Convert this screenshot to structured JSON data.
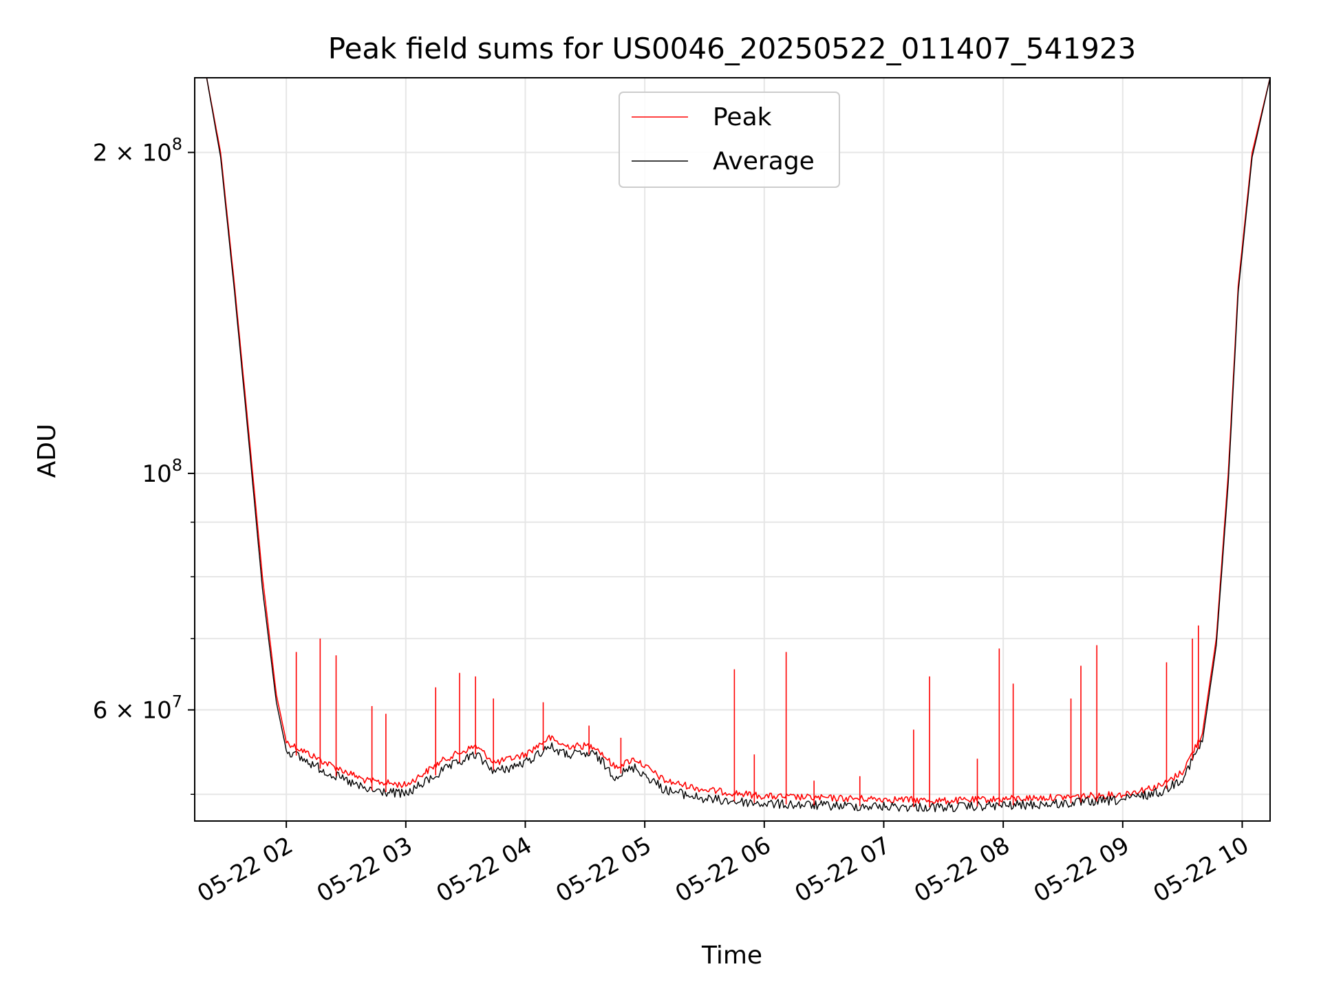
{
  "chart_data": {
    "type": "line",
    "title": "Peak field sums for US0046_20250522_011407_541923",
    "xlabel": "Time",
    "ylabel": "ADU",
    "yscale": "log",
    "grid": true,
    "legend_position": "top-center",
    "xlim": [
      "2025-05-22 01:14",
      "2025-05-22 10:14"
    ],
    "ylim": [
      47200000,
      235000000
    ],
    "x_ticks": [
      {
        "value": "2025-05-22 02:00",
        "label": "05-22 02"
      },
      {
        "value": "2025-05-22 03:00",
        "label": "05-22 03"
      },
      {
        "value": "2025-05-22 04:00",
        "label": "05-22 04"
      },
      {
        "value": "2025-05-22 05:00",
        "label": "05-22 05"
      },
      {
        "value": "2025-05-22 06:00",
        "label": "05-22 06"
      },
      {
        "value": "2025-05-22 07:00",
        "label": "05-22 07"
      },
      {
        "value": "2025-05-22 08:00",
        "label": "05-22 08"
      },
      {
        "value": "2025-05-22 09:00",
        "label": "05-22 09"
      },
      {
        "value": "2025-05-22 10:00",
        "label": "05-22 10"
      }
    ],
    "y_major_ticks": [
      {
        "value": 200000000,
        "mantissa": "2 × 10",
        "exponent": "8"
      },
      {
        "value": 100000000,
        "mantissa": "10",
        "exponent": "8"
      },
      {
        "value": 60000000,
        "mantissa": "6 × 10",
        "exponent": "7"
      }
    ],
    "y_minor_ticks": [
      50000000,
      70000000,
      80000000,
      90000000
    ],
    "series": [
      {
        "name": "Peak",
        "color": "#ff0000",
        "x": [
          "2025-05-22 01:20",
          "2025-05-22 01:27",
          "2025-05-22 01:34",
          "2025-05-22 01:41",
          "2025-05-22 01:48",
          "2025-05-22 01:55",
          "2025-05-22 02:00",
          "2025-05-22 02:20",
          "2025-05-22 02:40",
          "2025-05-22 03:00",
          "2025-05-22 03:20",
          "2025-05-22 03:35",
          "2025-05-22 03:45",
          "2025-05-22 04:00",
          "2025-05-22 04:12",
          "2025-05-22 04:20",
          "2025-05-22 04:35",
          "2025-05-22 04:45",
          "2025-05-22 04:55",
          "2025-05-22 05:10",
          "2025-05-22 05:30",
          "2025-05-22 06:00",
          "2025-05-22 06:30",
          "2025-05-22 07:00",
          "2025-05-22 07:30",
          "2025-05-22 08:00",
          "2025-05-22 08:30",
          "2025-05-22 09:00",
          "2025-05-22 09:20",
          "2025-05-22 09:30",
          "2025-05-22 09:40",
          "2025-05-22 09:47",
          "2025-05-22 09:53",
          "2025-05-22 09:58",
          "2025-05-22 10:05",
          "2025-05-22 10:14"
        ],
        "y": [
          235000000,
          200000000,
          150000000,
          110000000,
          80000000,
          62000000,
          56000000,
          53500000,
          51500000,
          51000000,
          54000000,
          55500000,
          53500000,
          54500000,
          56500000,
          55500000,
          55500000,
          53000000,
          54000000,
          51500000,
          50500000,
          49800000,
          49600000,
          49500000,
          49300000,
          49500000,
          49700000,
          50000000,
          51000000,
          52500000,
          57000000,
          70000000,
          100000000,
          150000000,
          200000000,
          235000000
        ]
      },
      {
        "name": "Average",
        "color": "#000000",
        "x": [
          "2025-05-22 01:20",
          "2025-05-22 01:27",
          "2025-05-22 01:34",
          "2025-05-22 01:41",
          "2025-05-22 01:48",
          "2025-05-22 01:55",
          "2025-05-22 02:00",
          "2025-05-22 02:20",
          "2025-05-22 02:40",
          "2025-05-22 03:00",
          "2025-05-22 03:20",
          "2025-05-22 03:35",
          "2025-05-22 03:45",
          "2025-05-22 04:00",
          "2025-05-22 04:12",
          "2025-05-22 04:20",
          "2025-05-22 04:35",
          "2025-05-22 04:45",
          "2025-05-22 04:55",
          "2025-05-22 05:10",
          "2025-05-22 05:30",
          "2025-05-22 06:00",
          "2025-05-22 06:30",
          "2025-05-22 07:00",
          "2025-05-22 07:30",
          "2025-05-22 08:00",
          "2025-05-22 08:30",
          "2025-05-22 09:00",
          "2025-05-22 09:20",
          "2025-05-22 09:30",
          "2025-05-22 09:40",
          "2025-05-22 09:47",
          "2025-05-22 09:53",
          "2025-05-22 09:58",
          "2025-05-22 10:05",
          "2025-05-22 10:14"
        ],
        "y": [
          235000000,
          198000000,
          148000000,
          108000000,
          78000000,
          61000000,
          55000000,
          52500000,
          50500000,
          50000000,
          52800000,
          54500000,
          52500000,
          53500000,
          55500000,
          54500000,
          54500000,
          52000000,
          53000000,
          50500000,
          49500000,
          49000000,
          48800000,
          48700000,
          48600000,
          48800000,
          49000000,
          49400000,
          50300000,
          51800000,
          56000000,
          69000000,
          98000000,
          148000000,
          198000000,
          235000000
        ]
      }
    ],
    "spikes": {
      "x": [
        "2025-05-22 02:05",
        "2025-05-22 02:17",
        "2025-05-22 02:25",
        "2025-05-22 02:43",
        "2025-05-22 02:50",
        "2025-05-22 03:15",
        "2025-05-22 03:27",
        "2025-05-22 03:35",
        "2025-05-22 03:44",
        "2025-05-22 04:09",
        "2025-05-22 04:32",
        "2025-05-22 04:48",
        "2025-05-22 05:45",
        "2025-05-22 05:55",
        "2025-05-22 06:11",
        "2025-05-22 06:25",
        "2025-05-22 06:48",
        "2025-05-22 07:15",
        "2025-05-22 07:23",
        "2025-05-22 07:47",
        "2025-05-22 07:58",
        "2025-05-22 08:05",
        "2025-05-22 08:34",
        "2025-05-22 08:39",
        "2025-05-22 08:47",
        "2025-05-22 09:22",
        "2025-05-22 09:35",
        "2025-05-22 09:38"
      ],
      "y": [
        68000000,
        70000000,
        67500000,
        60500000,
        59500000,
        63000000,
        65000000,
        64500000,
        61500000,
        61000000,
        58000000,
        56500000,
        65500000,
        54500000,
        68000000,
        51500000,
        52000000,
        57500000,
        64500000,
        54000000,
        68500000,
        63500000,
        61500000,
        66000000,
        69000000,
        66500000,
        70000000,
        72000000
      ]
    }
  }
}
